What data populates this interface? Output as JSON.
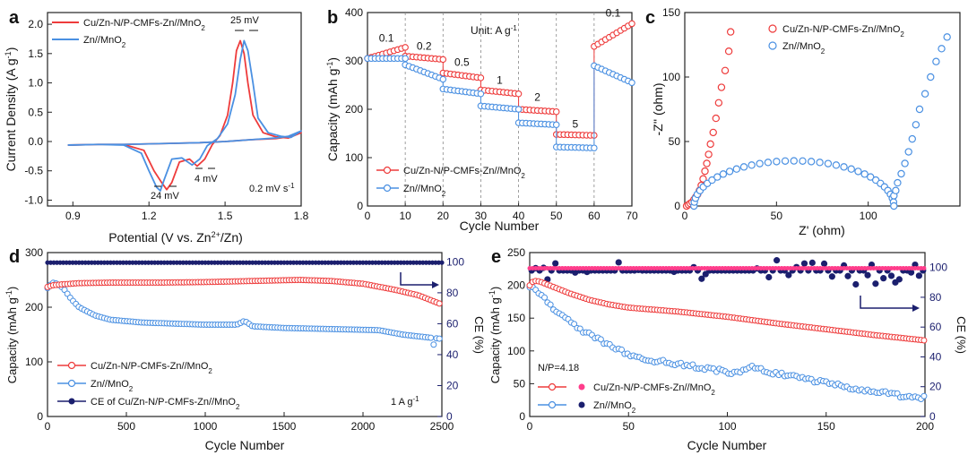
{
  "colors": {
    "red": "#ee3b3b",
    "blue": "#4a90e2",
    "navy": "#1b1f6e",
    "pink": "#ff3d8b"
  },
  "panels": {
    "a": {
      "letter": "a",
      "xlabel": "Potential (V vs. Zn",
      "xlabel_sup": "2+",
      "xlabel_tail": "/Zn)",
      "ylabel": "Current Density (A g",
      "ylabel_sup": "-1",
      "ylabel_tail": ")",
      "xlim": [
        0.8,
        1.8
      ],
      "ylim": [
        -1.1,
        2.2
      ],
      "xticks": [
        "0.9",
        "1.2",
        "1.5",
        "1.8"
      ],
      "xtick_vals": [
        0.9,
        1.2,
        1.5,
        1.8
      ],
      "yticks": [
        "-1.0",
        "-0.5",
        "0.0",
        "0.5",
        "1.0",
        "1.5",
        "2.0"
      ],
      "ytick_vals": [
        -1.0,
        -0.5,
        0.0,
        0.5,
        1.0,
        1.5,
        2.0
      ],
      "legend": [
        "Cu/Zn-N/P-CMFs-Zn//MnO",
        "Zn//MnO"
      ],
      "annotations": {
        "peak_gap": "25 mV",
        "valley_gap_1": "24 mV",
        "valley_gap_2": "4 mV",
        "scan_rate": "0.2 mV s",
        "scan_rate_sup": "-1"
      }
    },
    "b": {
      "letter": "b",
      "xlabel": "Cycle Number",
      "ylabel": "Capacity (mAh g",
      "ylabel_sup": "-1",
      "ylabel_tail": ")",
      "xlim": [
        0,
        70
      ],
      "ylim": [
        0,
        400
      ],
      "xticks": [
        "0",
        "10",
        "20",
        "30",
        "40",
        "50",
        "60",
        "70"
      ],
      "xtick_vals": [
        0,
        10,
        20,
        30,
        40,
        50,
        60,
        70
      ],
      "yticks": [
        "0",
        "100",
        "200",
        "300",
        "400"
      ],
      "ytick_vals": [
        0,
        100,
        200,
        300,
        400
      ],
      "unit_text": "Unit: A g",
      "unit_sup": "-1",
      "rate_labels": [
        {
          "text": "0.1",
          "x": 5,
          "y": 340
        },
        {
          "text": "0.2",
          "x": 15,
          "y": 323
        },
        {
          "text": "0.5",
          "x": 25,
          "y": 290
        },
        {
          "text": "1",
          "x": 35,
          "y": 253
        },
        {
          "text": "2",
          "x": 45,
          "y": 218
        },
        {
          "text": "5",
          "x": 55,
          "y": 162
        },
        {
          "text": "0.1",
          "x": 65,
          "y": 392
        }
      ],
      "legend": [
        "Cu/Zn-N/P-CMFs-Zn//MnO",
        "Zn//MnO"
      ]
    },
    "c": {
      "letter": "c",
      "xlabel": "Z' (ohm)",
      "ylabel": "-Z'' (ohm)",
      "xlim": [
        0,
        150
      ],
      "ylim": [
        0,
        150
      ],
      "xticks": [
        "0",
        "50",
        "100"
      ],
      "xtick_vals": [
        0,
        50,
        100
      ],
      "yticks": [
        "0",
        "50",
        "100",
        "150"
      ],
      "ytick_vals": [
        0,
        50,
        100,
        150
      ],
      "legend": [
        "Cu/Zn-N/P-CMFs-Zn//MnO",
        "Zn//MnO"
      ]
    },
    "d": {
      "letter": "d",
      "xlabel": "Cycle Number",
      "ylabel": "Capacity (mAh g",
      "ylabel_sup": "-1",
      "ylabel_tail": ")",
      "ylabel_right": "CE (%)",
      "xlim": [
        0,
        2500
      ],
      "ylim": [
        0,
        300
      ],
      "ylim_right": [
        0,
        106
      ],
      "xticks": [
        "0",
        "500",
        "1000",
        "1500",
        "2000",
        "2500"
      ],
      "xtick_vals": [
        0,
        500,
        1000,
        1500,
        2000,
        2500
      ],
      "yticks": [
        "0",
        "100",
        "200",
        "300"
      ],
      "ytick_vals": [
        0,
        100,
        200,
        300
      ],
      "yticks_right": [
        "0",
        "20",
        "40",
        "60",
        "80",
        "100"
      ],
      "ytick_right_vals": [
        0,
        20,
        40,
        60,
        80,
        100
      ],
      "legend": [
        "Cu/Zn-N/P-CMFs-Zn//MnO",
        "Zn//MnO",
        "CE of Cu/Zn-N/P-CMFs-Zn//MnO"
      ],
      "current": "1 A g",
      "current_sup": "-1"
    },
    "e": {
      "letter": "e",
      "xlabel": "Cycle Number",
      "ylabel": "Capacity (mAh g",
      "ylabel_sup": "-1",
      "ylabel_tail": ")",
      "ylabel_right": "CE (%)",
      "xlim": [
        0,
        200
      ],
      "ylim": [
        0,
        250
      ],
      "ylim_right": [
        0,
        110
      ],
      "xticks": [
        "0",
        "50",
        "100",
        "150",
        "200"
      ],
      "xtick_vals": [
        0,
        50,
        100,
        150,
        200
      ],
      "yticks": [
        "0",
        "50",
        "100",
        "150",
        "200",
        "250"
      ],
      "ytick_vals": [
        0,
        50,
        100,
        150,
        200,
        250
      ],
      "yticks_right": [
        "0",
        "20",
        "40",
        "60",
        "80",
        "100"
      ],
      "ytick_right_vals": [
        0,
        20,
        40,
        60,
        80,
        100
      ],
      "legend": [
        "Cu/Zn-N/P-CMFs-Zn//MnO",
        "Zn//MnO"
      ],
      "np_ratio": "N/P=4.18"
    }
  },
  "chart_data": [
    {
      "type": "line",
      "panel": "a",
      "title": "",
      "series": [
        {
          "name": "Cu/Zn-N/P-CMFs-Zn//MnO2",
          "color": "#ee3b3b",
          "x": [
            0.88,
            1.0,
            1.1,
            1.18,
            1.22,
            1.25,
            1.27,
            1.29,
            1.32,
            1.36,
            1.39,
            1.42,
            1.45,
            1.48,
            1.51,
            1.53,
            1.545,
            1.56,
            1.575,
            1.59,
            1.61,
            1.65,
            1.7,
            1.75,
            1.8,
            1.75,
            1.7,
            1.6,
            1.5,
            1.4,
            1.3,
            1.2,
            1.1,
            1.0,
            0.9,
            0.88
          ],
          "y": [
            -0.06,
            -0.05,
            -0.05,
            -0.15,
            -0.5,
            -0.7,
            -0.82,
            -0.7,
            -0.35,
            -0.3,
            -0.42,
            -0.3,
            -0.05,
            0.1,
            0.45,
            1.0,
            1.55,
            1.72,
            1.5,
            1.0,
            0.45,
            0.15,
            0.08,
            0.06,
            0.15,
            0.08,
            0.05,
            0.03,
            0.0,
            -0.02,
            -0.03,
            -0.04,
            -0.05,
            -0.05,
            -0.06,
            -0.06
          ]
        },
        {
          "name": "Zn//MnO2",
          "color": "#4a90e2",
          "x": [
            0.88,
            1.0,
            1.1,
            1.17,
            1.2,
            1.23,
            1.245,
            1.26,
            1.29,
            1.33,
            1.37,
            1.4,
            1.43,
            1.47,
            1.51,
            1.54,
            1.56,
            1.575,
            1.59,
            1.61,
            1.63,
            1.67,
            1.72,
            1.76,
            1.8,
            1.75,
            1.7,
            1.6,
            1.5,
            1.4,
            1.3,
            1.2,
            1.1,
            1.0,
            0.9,
            0.88
          ],
          "y": [
            -0.06,
            -0.05,
            -0.06,
            -0.2,
            -0.5,
            -0.78,
            -0.84,
            -0.65,
            -0.3,
            -0.28,
            -0.4,
            -0.3,
            -0.07,
            0.05,
            0.3,
            0.8,
            1.4,
            1.72,
            1.55,
            1.0,
            0.4,
            0.15,
            0.09,
            0.07,
            0.18,
            0.09,
            0.06,
            0.03,
            0.0,
            -0.02,
            -0.03,
            -0.04,
            -0.05,
            -0.05,
            -0.06,
            -0.06
          ]
        }
      ]
    },
    {
      "type": "scatter",
      "panel": "b",
      "segments": [
        [
          0,
          10
        ],
        [
          10,
          20
        ],
        [
          20,
          30
        ],
        [
          30,
          40
        ],
        [
          40,
          50
        ],
        [
          50,
          60
        ],
        [
          60,
          70
        ]
      ],
      "series": [
        {
          "name": "Cu/Zn-N/P-CMFs-Zn//MnO2",
          "color": "#ee3b3b",
          "start": [
            305,
            310,
            275,
            240,
            200,
            148,
            330
          ],
          "end": [
            328,
            303,
            265,
            232,
            195,
            146,
            377
          ]
        },
        {
          "name": "Zn//MnO2",
          "color": "#4a90e2",
          "start": [
            305,
            292,
            242,
            207,
            172,
            122,
            290
          ],
          "end": [
            305,
            262,
            232,
            200,
            168,
            120,
            255
          ]
        }
      ]
    },
    {
      "type": "scatter",
      "panel": "c",
      "series": [
        {
          "name": "Cu/Zn-N/P-CMFs-Zn//MnO2",
          "color": "#ee3b3b",
          "points": [
            [
              1,
              0
            ],
            [
              2,
              1
            ],
            [
              3,
              2
            ],
            [
              4,
              3
            ],
            [
              5,
              5
            ],
            [
              6,
              7
            ],
            [
              7,
              9
            ],
            [
              8,
              12
            ],
            [
              9,
              16
            ],
            [
              10,
              21
            ],
            [
              11,
              27
            ],
            [
              12,
              33
            ],
            [
              13,
              40
            ],
            [
              14,
              48
            ],
            [
              15.5,
              57
            ],
            [
              17,
              68
            ],
            [
              18.5,
              80
            ],
            [
              20,
              92
            ],
            [
              22,
              105
            ],
            [
              24,
              120
            ],
            [
              25,
              135
            ]
          ]
        },
        {
          "name": "Zn//MnO2",
          "color": "#4a90e2",
          "semicircle_start": 5,
          "semicircle_end": 114,
          "semicircle_peak": 35,
          "tail": [
            [
              114,
              8
            ],
            [
              115,
              12
            ],
            [
              116,
              18
            ],
            [
              118,
              25
            ],
            [
              120,
              33
            ],
            [
              122,
              42
            ],
            [
              124,
              52
            ],
            [
              126,
              63
            ],
            [
              128,
              75
            ],
            [
              131,
              87
            ],
            [
              134,
              100
            ],
            [
              137,
              112
            ],
            [
              140,
              122
            ],
            [
              143,
              131
            ]
          ]
        }
      ]
    },
    {
      "type": "scatter",
      "panel": "d",
      "series": [
        {
          "name": "Cu/Zn-N/P-CMFs-Zn//MnO2",
          "color": "#ee3b3b",
          "x": [
            0,
            30,
            100,
            200,
            400,
            700,
            1000,
            1300,
            1600,
            1800,
            2000,
            2200,
            2350,
            2500
          ],
          "y": [
            237,
            240,
            242,
            244,
            245,
            245,
            246,
            248,
            250,
            248,
            243,
            232,
            222,
            205
          ]
        },
        {
          "name": "Zn//MnO2",
          "color": "#4a90e2",
          "x": [
            0,
            30,
            60,
            100,
            150,
            200,
            300,
            400,
            600,
            800,
            1000,
            1200,
            1250,
            1300,
            1500,
            1800,
            2100,
            2250,
            2400,
            2500
          ],
          "y": [
            235,
            245,
            243,
            235,
            215,
            200,
            185,
            177,
            172,
            170,
            168,
            168,
            175,
            165,
            162,
            160,
            158,
            150,
            145,
            142
          ]
        },
        {
          "name": "CE of Cu/Zn-N/P-CMFs-Zn//MnO2",
          "color": "#1b1f6e",
          "axis": "right",
          "value": 99.5
        }
      ]
    },
    {
      "type": "scatter",
      "panel": "e",
      "series": [
        {
          "name": "Cu/Zn-N/P-CMFs-Zn//MnO2",
          "color": "#ee3b3b",
          "x": [
            0,
            2,
            5,
            10,
            20,
            30,
            40,
            50,
            75,
            100,
            125,
            150,
            175,
            200
          ],
          "y": [
            200,
            207,
            206,
            200,
            188,
            178,
            171,
            166,
            160,
            152,
            142,
            133,
            124,
            116
          ]
        },
        {
          "name": "Zn//MnO2",
          "color": "#4a90e2",
          "x": [
            0,
            5,
            10,
            20,
            30,
            40,
            50,
            60,
            75,
            90,
            105,
            112,
            125,
            140,
            155,
            170,
            185,
            200
          ],
          "y": [
            200,
            188,
            170,
            145,
            125,
            108,
            95,
            87,
            80,
            73,
            66,
            75,
            65,
            57,
            48,
            40,
            33,
            28
          ]
        },
        {
          "name": "CE Cu/Zn-N/P-CMFs-Zn//MnO2",
          "color": "#ff3d8b",
          "axis": "right",
          "value": 99.5
        },
        {
          "name": "CE Zn//MnO2",
          "color": "#1b1f6e",
          "axis": "right",
          "value": 98
        }
      ]
    }
  ]
}
